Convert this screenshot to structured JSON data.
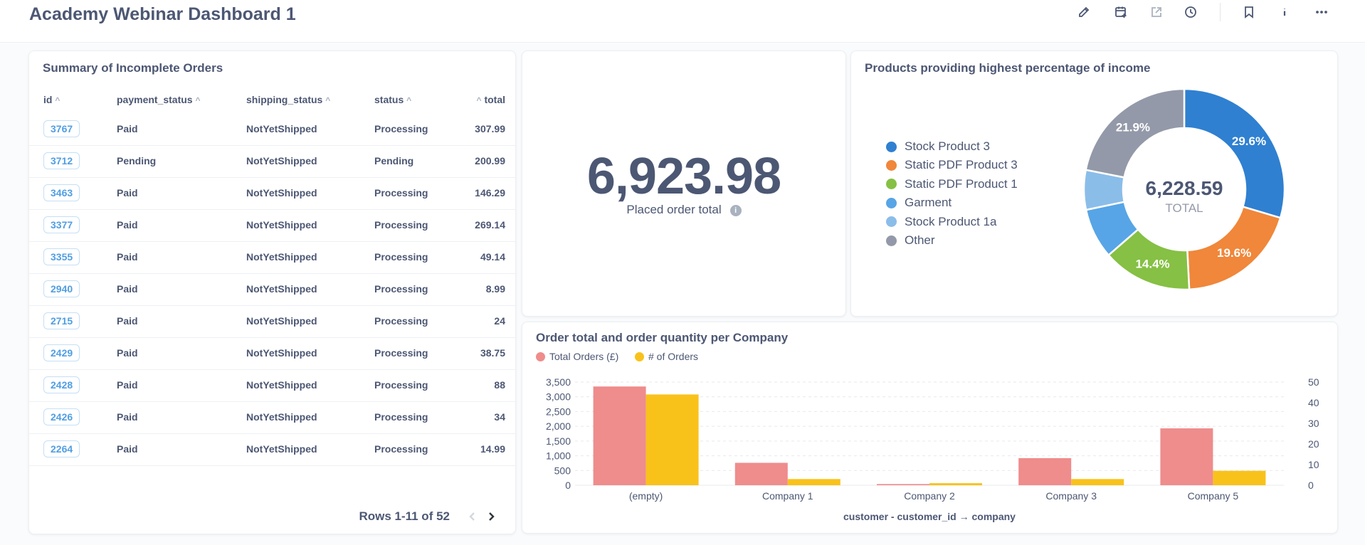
{
  "dashboard": {
    "title": "Academy Webinar Dashboard 1"
  },
  "toolbar": [
    {
      "name": "edit-icon",
      "icon": "pencil",
      "disabled": false
    },
    {
      "name": "add-filter-icon",
      "icon": "calendar-plus",
      "disabled": false
    },
    {
      "name": "share-icon",
      "icon": "share-arrow",
      "disabled": true
    },
    {
      "name": "history-icon",
      "icon": "clock",
      "disabled": false
    },
    {
      "name": "bookmark-icon",
      "icon": "bookmark",
      "disabled": false
    },
    {
      "name": "info-icon",
      "icon": "info",
      "disabled": false
    },
    {
      "name": "more-icon",
      "icon": "ellipsis",
      "disabled": false
    }
  ],
  "table_card": {
    "title": "Summary of Incomplete Orders",
    "columns": [
      {
        "label": "id",
        "sort": "asc"
      },
      {
        "label": "payment_status",
        "sort": "asc"
      },
      {
        "label": "shipping_status",
        "sort": "asc"
      },
      {
        "label": "status",
        "sort": "asc"
      },
      {
        "label": "total",
        "sort": "asc"
      }
    ],
    "rows": [
      {
        "id": "3767",
        "payment_status": "Paid",
        "shipping_status": "NotYetShipped",
        "status": "Processing",
        "total": "307.99"
      },
      {
        "id": "3712",
        "payment_status": "Pending",
        "shipping_status": "NotYetShipped",
        "status": "Pending",
        "total": "200.99"
      },
      {
        "id": "3463",
        "payment_status": "Paid",
        "shipping_status": "NotYetShipped",
        "status": "Processing",
        "total": "146.29"
      },
      {
        "id": "3377",
        "payment_status": "Paid",
        "shipping_status": "NotYetShipped",
        "status": "Processing",
        "total": "269.14"
      },
      {
        "id": "3355",
        "payment_status": "Paid",
        "shipping_status": "NotYetShipped",
        "status": "Processing",
        "total": "49.14"
      },
      {
        "id": "2940",
        "payment_status": "Paid",
        "shipping_status": "NotYetShipped",
        "status": "Processing",
        "total": "8.99"
      },
      {
        "id": "2715",
        "payment_status": "Paid",
        "shipping_status": "NotYetShipped",
        "status": "Processing",
        "total": "24"
      },
      {
        "id": "2429",
        "payment_status": "Paid",
        "shipping_status": "NotYetShipped",
        "status": "Processing",
        "total": "38.75"
      },
      {
        "id": "2428",
        "payment_status": "Paid",
        "shipping_status": "NotYetShipped",
        "status": "Processing",
        "total": "88"
      },
      {
        "id": "2426",
        "payment_status": "Paid",
        "shipping_status": "NotYetShipped",
        "status": "Processing",
        "total": "34"
      },
      {
        "id": "2264",
        "payment_status": "Paid",
        "shipping_status": "NotYetShipped",
        "status": "Processing",
        "total": "14.99"
      }
    ],
    "pagination": {
      "label": "Rows 1-11 of 52",
      "prev_disabled": true,
      "next_disabled": false
    }
  },
  "scalar_card": {
    "value": "6,923.98",
    "label": "Placed order total",
    "info_glyph": "i"
  },
  "colors": {
    "blue": "#2f80d1",
    "orange": "#f0873a",
    "green": "#86c044",
    "light_blue": "#57a5e6",
    "pale_blue": "#8bbde9",
    "gray": "#9399a8",
    "pink": "#ef8c8c",
    "yellow": "#f9c21b"
  },
  "chart_data": [
    {
      "type": "pie",
      "donut": true,
      "title": "Products providing highest percentage of income",
      "center_value": "6,228.59",
      "center_label": "TOTAL",
      "legend_position": "left",
      "slices": [
        {
          "label": "Stock Product 3",
          "percent": 29.6,
          "display": "29.6%",
          "color": "#2f80d1"
        },
        {
          "label": "Static PDF Product 3",
          "percent": 19.6,
          "display": "19.6%",
          "color": "#f0873a"
        },
        {
          "label": "Static PDF Product 1",
          "percent": 14.4,
          "display": "14.4%",
          "color": "#86c044"
        },
        {
          "label": "Garment",
          "percent": 8.1,
          "display": "",
          "color": "#57a5e6"
        },
        {
          "label": "Stock Product 1a",
          "percent": 6.4,
          "display": "",
          "color": "#8bbde9"
        },
        {
          "label": "Other",
          "percent": 21.9,
          "display": "21.9%",
          "color": "#9399a8"
        }
      ]
    },
    {
      "type": "bar",
      "title": "Order total and order quantity per Company",
      "xlabel": "customer - customer_id → company",
      "categories": [
        "(empty)",
        "Company 1",
        "Company 2",
        "Company 3",
        "Company 5"
      ],
      "series": [
        {
          "name": "Total Orders (£)",
          "axis": "left",
          "color": "#ef8c8c",
          "values": [
            3350,
            760,
            40,
            920,
            1930
          ]
        },
        {
          "name": "# of Orders",
          "axis": "right",
          "color": "#f9c21b",
          "values": [
            44,
            3,
            1,
            3,
            7
          ]
        }
      ],
      "ylim_left": [
        0,
        3500
      ],
      "yticks_left": [
        "0",
        "500",
        "1,000",
        "1,500",
        "2,000",
        "2,500",
        "3,000",
        "3,500"
      ],
      "ylim_right": [
        0,
        50
      ],
      "yticks_right": [
        "0",
        "10",
        "20",
        "30",
        "40",
        "50"
      ],
      "grid": true,
      "legend_position": "top-left"
    }
  ]
}
